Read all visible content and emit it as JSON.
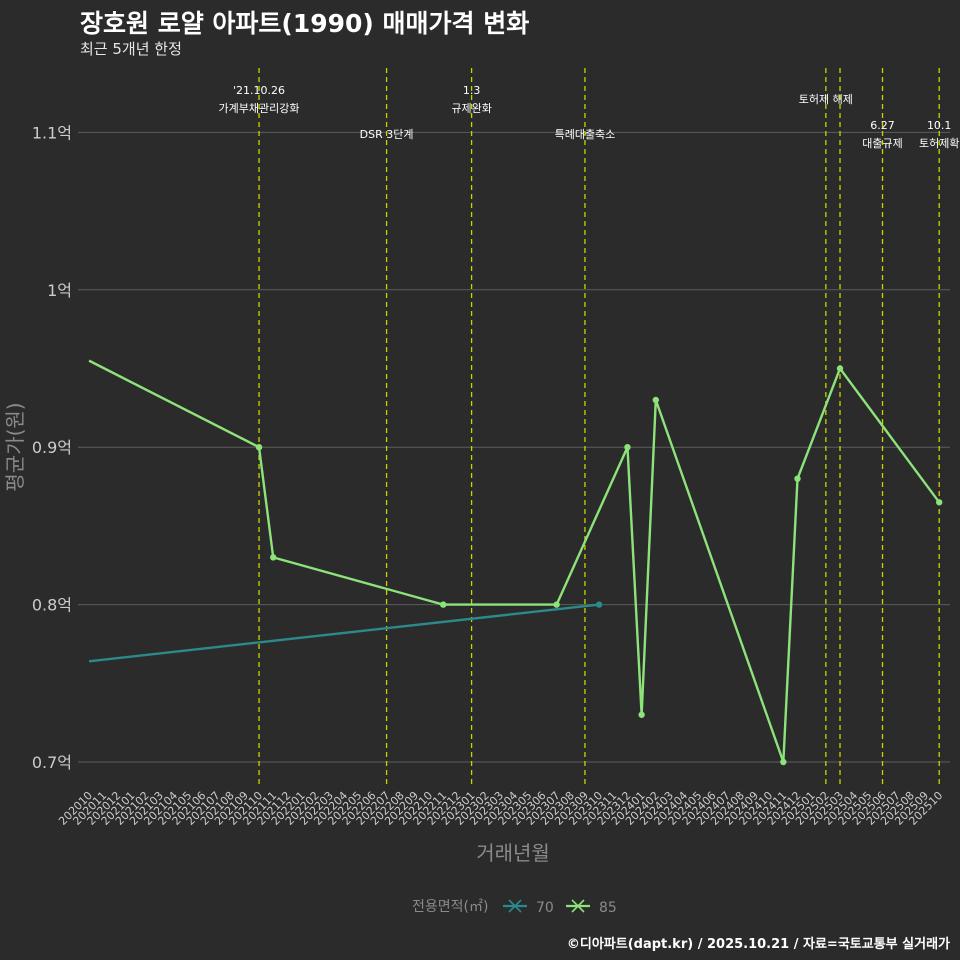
{
  "title": "장호원 로얄 아파트(1990) 매매가격 변화",
  "subtitle": "최근 5개년 한정",
  "caption": "©디아파트(dapt.kr) / 2025.10.21 / 자료=국토교통부 실거래가",
  "colors": {
    "background": "#2b2b2b",
    "grid": "#5c5c5c",
    "event_line": "#c8d400",
    "series_70": "#2a8a8c",
    "series_85": "#8ee27a",
    "axis_text": "#cccccc",
    "axis_title": "#8a8a8a"
  },
  "chart_data": {
    "type": "line",
    "title": "장호원 로얄 아파트(1990) 매매가격 변화",
    "subtitle": "최근 5개년 한정",
    "xlabel": "거래년월",
    "ylabel": "평균가(원)",
    "ylim": [
      0.68,
      1.14
    ],
    "yticks": [
      {
        "value": 0.7,
        "label": "0.7억"
      },
      {
        "value": 0.8,
        "label": "0.8억"
      },
      {
        "value": 0.9,
        "label": "0.9억"
      },
      {
        "value": 1.0,
        "label": "1억"
      },
      {
        "value": 1.1,
        "label": "1.1억"
      }
    ],
    "categories": [
      "202010",
      "202011",
      "202012",
      "202101",
      "202102",
      "202103",
      "202104",
      "202105",
      "202106",
      "202107",
      "202108",
      "202109",
      "202110",
      "202111",
      "202112",
      "202201",
      "202202",
      "202203",
      "202204",
      "202205",
      "202206",
      "202207",
      "202208",
      "202209",
      "202210",
      "202211",
      "202212",
      "202301",
      "202302",
      "202303",
      "202304",
      "202305",
      "202306",
      "202307",
      "202308",
      "202309",
      "202310",
      "202311",
      "202312",
      "202401",
      "202402",
      "202403",
      "202404",
      "202405",
      "202406",
      "202407",
      "202408",
      "202409",
      "202410",
      "202411",
      "202412",
      "202501",
      "202502",
      "202503",
      "202504",
      "202505",
      "202506",
      "202507",
      "202508",
      "202509",
      "202510"
    ],
    "legend_title": "전용면적(㎡)",
    "legend_position": "bottom",
    "series": [
      {
        "name": "70",
        "points": [
          {
            "x": "202010",
            "y": 0.764,
            "marker": false
          },
          {
            "x": "202310",
            "y": 0.8,
            "marker": true
          }
        ]
      },
      {
        "name": "85",
        "points": [
          {
            "x": "202010",
            "y": 0.955,
            "marker": false
          },
          {
            "x": "202110",
            "y": 0.9,
            "marker": true
          },
          {
            "x": "202111",
            "y": 0.83,
            "marker": true
          },
          {
            "x": "202211",
            "y": 0.8,
            "marker": true
          },
          {
            "x": "202307",
            "y": 0.8,
            "marker": true
          },
          {
            "x": "202312",
            "y": 0.9,
            "marker": true
          },
          {
            "x": "202401",
            "y": 0.73,
            "marker": true
          },
          {
            "x": "202402",
            "y": 0.93,
            "marker": true
          },
          {
            "x": "202411",
            "y": 0.7,
            "marker": true
          },
          {
            "x": "202412",
            "y": 0.88,
            "marker": true
          },
          {
            "x": "202503",
            "y": 0.95,
            "marker": true
          },
          {
            "x": "202510",
            "y": 0.865,
            "marker": true
          }
        ]
      }
    ],
    "events": [
      {
        "x": "202110",
        "lines": [
          "'21.10.26",
          "가계부채관리강화"
        ],
        "row": "top"
      },
      {
        "x": "202207",
        "lines": [
          "DSR 3단계"
        ],
        "row": "low"
      },
      {
        "x": "202301",
        "lines": [
          "1.3",
          "규제완화"
        ],
        "row": "top"
      },
      {
        "x": "202309",
        "lines": [
          "특례대출축소"
        ],
        "row": "low"
      },
      {
        "x": "202502",
        "lines": [
          "토허제 해제"
        ],
        "row": "mid"
      },
      {
        "x": "202503",
        "lines": [],
        "row": "mid"
      },
      {
        "x": "202506",
        "lines": [
          "6.27",
          "대출규제"
        ],
        "row": "low"
      },
      {
        "x": "202510",
        "lines": [
          "10.1",
          "토허제확"
        ],
        "row": "low"
      }
    ]
  }
}
